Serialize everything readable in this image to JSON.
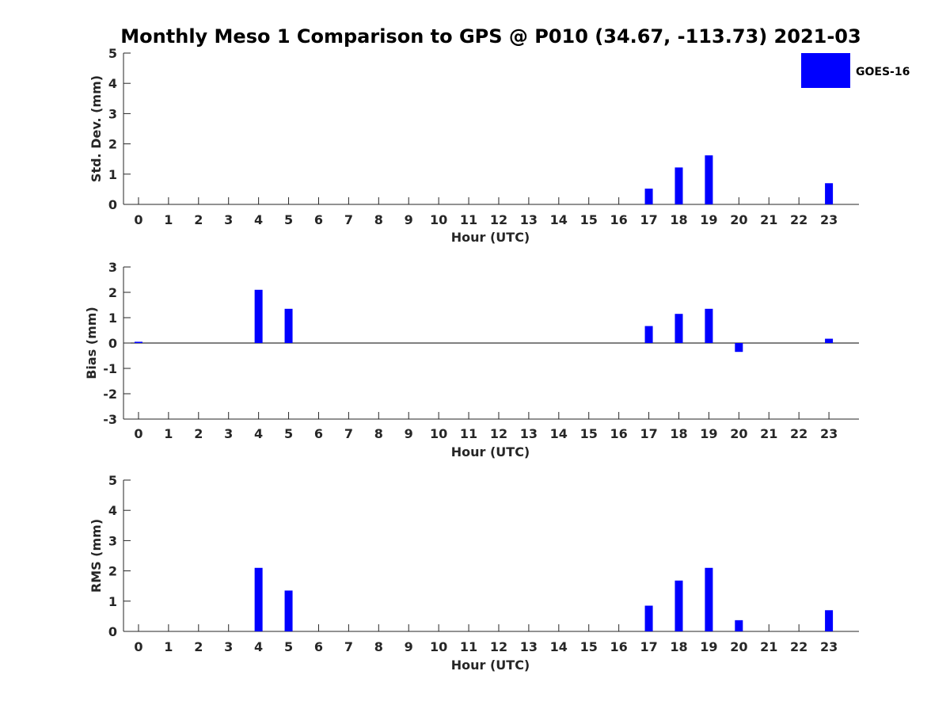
{
  "figure": {
    "title": "Monthly Meso 1 Comparison to GPS @ P010 (34.67, -113.73) 2021-03"
  },
  "legend": {
    "label": "GOES-16",
    "color": "#0000ff",
    "placement": "top-right"
  },
  "chart_data": [
    {
      "type": "bar",
      "xlabel": "Hour (UTC)",
      "ylabel": "Std. Dev. (mm)",
      "ylim": [
        0,
        5
      ],
      "yticks": [
        "0",
        "1",
        "2",
        "3",
        "4",
        "5"
      ],
      "categories": [
        "0",
        "1",
        "2",
        "3",
        "4",
        "5",
        "6",
        "7",
        "8",
        "9",
        "10",
        "11",
        "12",
        "13",
        "14",
        "15",
        "16",
        "17",
        "18",
        "19",
        "20",
        "21",
        "22",
        "23"
      ],
      "series": [
        {
          "name": "GOES-16",
          "values": [
            0,
            0,
            0,
            0,
            0,
            0,
            0,
            0,
            0,
            0,
            0,
            0,
            0,
            0,
            0,
            0,
            0,
            0.52,
            1.22,
            1.62,
            0,
            0,
            0,
            0.7
          ]
        }
      ]
    },
    {
      "type": "bar",
      "xlabel": "Hour (UTC)",
      "ylabel": "Bias (mm)",
      "ylim": [
        -3,
        3
      ],
      "yticks": [
        "-3",
        "-2",
        "-1",
        "0",
        "1",
        "2",
        "3"
      ],
      "categories": [
        "0",
        "1",
        "2",
        "3",
        "4",
        "5",
        "6",
        "7",
        "8",
        "9",
        "10",
        "11",
        "12",
        "13",
        "14",
        "15",
        "16",
        "17",
        "18",
        "19",
        "20",
        "21",
        "22",
        "23"
      ],
      "series": [
        {
          "name": "GOES-16",
          "values": [
            0.05,
            0,
            0,
            0,
            2.1,
            1.35,
            0,
            0,
            0,
            0,
            0,
            0,
            0,
            0,
            0,
            0,
            0,
            0.67,
            1.15,
            1.35,
            -0.35,
            0,
            0,
            0.17
          ]
        }
      ]
    },
    {
      "type": "bar",
      "xlabel": "Hour (UTC)",
      "ylabel": "RMS (mm)",
      "ylim": [
        0,
        5
      ],
      "yticks": [
        "0",
        "1",
        "2",
        "3",
        "4",
        "5"
      ],
      "categories": [
        "0",
        "1",
        "2",
        "3",
        "4",
        "5",
        "6",
        "7",
        "8",
        "9",
        "10",
        "11",
        "12",
        "13",
        "14",
        "15",
        "16",
        "17",
        "18",
        "19",
        "20",
        "21",
        "22",
        "23"
      ],
      "series": [
        {
          "name": "GOES-16",
          "values": [
            0,
            0,
            0,
            0,
            2.1,
            1.35,
            0,
            0,
            0,
            0,
            0,
            0,
            0,
            0,
            0,
            0,
            0,
            0.85,
            1.68,
            2.1,
            0.37,
            0,
            0,
            0.7
          ]
        }
      ]
    }
  ]
}
